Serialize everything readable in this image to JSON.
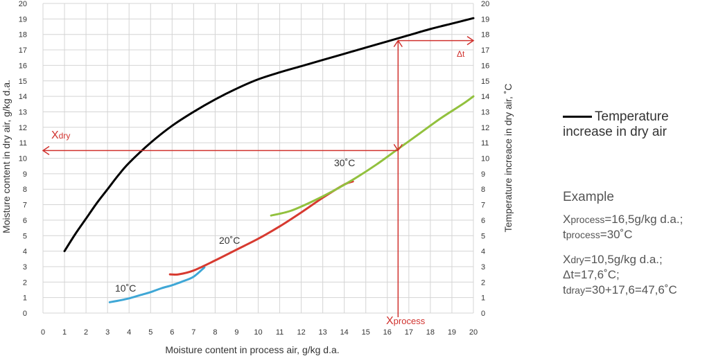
{
  "chart_data": {
    "type": "line",
    "xlabel": "Moisture content in process air, g/kg d.a.",
    "ylabel_left": "Moisture content in dry air, g/kg d.a.",
    "ylabel_right": "Temperature increace in dry air, ˚C",
    "xlim": [
      0,
      20
    ],
    "ylim": [
      0,
      20
    ],
    "x_ticks": [
      0,
      1,
      2,
      3,
      4,
      5,
      6,
      7,
      8,
      9,
      10,
      11,
      12,
      13,
      14,
      15,
      16,
      17,
      18,
      19,
      20
    ],
    "y_ticks": [
      0,
      1,
      2,
      3,
      4,
      5,
      6,
      7,
      8,
      9,
      10,
      11,
      12,
      13,
      14,
      15,
      16,
      17,
      18,
      19,
      20
    ],
    "grid": true,
    "series": [
      {
        "name": "10˚C",
        "color": "#3fa7d6",
        "x": [
          3.1,
          3.5,
          4.0,
          4.5,
          5.0,
          5.5,
          6.0,
          6.5,
          7.0,
          7.5
        ],
        "y": [
          0.7,
          0.8,
          0.95,
          1.15,
          1.35,
          1.6,
          1.8,
          2.05,
          2.35,
          2.95
        ]
      },
      {
        "name": "20˚C",
        "color": "#d73a30",
        "x": [
          5.9,
          6.3,
          7.0,
          8.0,
          9.0,
          10.0,
          11.0,
          12.0,
          13.0,
          14.0,
          14.4
        ],
        "y": [
          2.5,
          2.5,
          2.75,
          3.4,
          4.1,
          4.8,
          5.6,
          6.5,
          7.45,
          8.3,
          8.5
        ]
      },
      {
        "name": "30˚C",
        "color": "#92c13e",
        "x": [
          10.6,
          11.5,
          12.5,
          13.5,
          14.5,
          15.5,
          16.5,
          17.5,
          18.5,
          19.5,
          20.0
        ],
        "y": [
          6.3,
          6.6,
          7.2,
          7.9,
          8.7,
          9.6,
          10.6,
          11.6,
          12.6,
          13.5,
          14.0
        ]
      },
      {
        "name": "Temperature increase in dry air",
        "color": "#000000",
        "x": [
          1.0,
          1.5,
          2.0,
          2.5,
          3.0,
          3.5,
          4.0,
          5.0,
          6.0,
          7.0,
          8.0,
          9.0,
          10.0,
          11.0,
          12.0,
          13.0,
          14.0,
          15.0,
          16.0,
          17.0,
          18.0,
          19.0,
          20.0
        ],
        "y": [
          4.0,
          5.1,
          6.1,
          7.1,
          8.0,
          8.9,
          9.7,
          11.0,
          12.1,
          13.0,
          13.8,
          14.5,
          15.1,
          15.55,
          15.95,
          16.35,
          16.75,
          17.15,
          17.55,
          17.95,
          18.35,
          18.7,
          19.05
        ]
      }
    ],
    "annotations": {
      "x_process": 16.5,
      "x_dry": 10.5,
      "delta_t": 17.6,
      "x_dry_label": "X",
      "x_dry_sub": "dry",
      "x_process_label": "X",
      "x_process_sub": "process",
      "delta_label": "Δt",
      "color": "#d0312d"
    },
    "series_labels": [
      "10˚C",
      "20˚C",
      "30˚C"
    ]
  },
  "legend": {
    "line1": "Temperature",
    "line2": "increase in dry air"
  },
  "example": {
    "title": "Example",
    "l1_main": "X",
    "l1_sub": "process",
    "l1_rest": "=16,5g/kg d.a.;",
    "l2_main": "t",
    "l2_sub": "process",
    "l2_rest": "=30˚C",
    "l3_main": "X",
    "l3_sub": "dry",
    "l3_rest": "=10,5g/kg d.a.;",
    "l4": "Δt=17,6˚C;",
    "l5_main": "t",
    "l5_sub": "dray",
    "l5_rest": "=30+17,6=47,6˚C"
  }
}
